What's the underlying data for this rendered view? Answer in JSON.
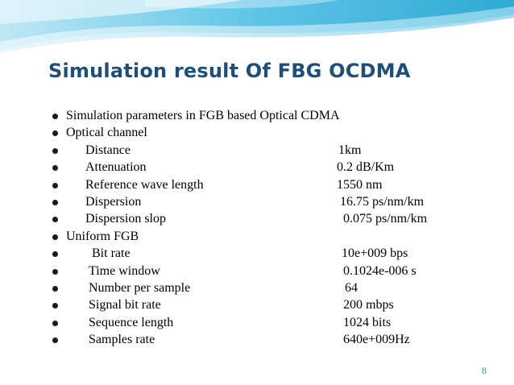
{
  "slide": {
    "title": "Simulation result Of FBG OCDMA",
    "page_number": "8"
  },
  "items": [
    {
      "text": "Simulation parameters in FGB  based Optical CDMA",
      "value": ""
    },
    {
      "text": "Optical channel",
      "value": ""
    },
    {
      "text": "Distance",
      "value": "1km"
    },
    {
      "text": "Attenuation",
      "value": "0.2 dB/Km"
    },
    {
      "text": "Reference wave length",
      "value": "1550 nm"
    },
    {
      "text": "Dispersion",
      "value": "16.75 ps/nm/km"
    },
    {
      "text": "Dispersion slop",
      "value": "0.075  ps/nm/km"
    },
    {
      "text": "Uniform FGB",
      "value": ""
    },
    {
      "text": "Bit rate",
      "value": "10e+009 bps"
    },
    {
      "text": "Time window",
      "value": "0.1024e-006 s"
    },
    {
      "text": "Number per sample",
      "value": "64"
    },
    {
      "text": "Signal bit rate",
      "value": "200 mbps"
    },
    {
      "text": "Sequence length",
      "value": "1024 bits"
    },
    {
      "text": "Samples rate",
      "value": "640e+009Hz"
    }
  ],
  "colors": {
    "title": "#1f4e79",
    "wave_primary": "#5bc0de",
    "wave_light": "#d6f0f8",
    "page_number": "#2e8ab5"
  }
}
